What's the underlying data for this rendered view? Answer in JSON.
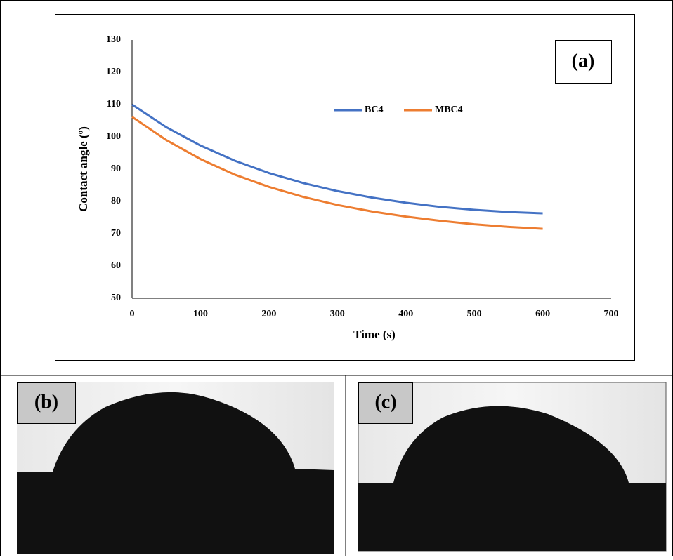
{
  "chart_data": {
    "type": "line",
    "x": [
      0,
      50,
      100,
      150,
      200,
      250,
      300,
      350,
      400,
      450,
      500,
      550,
      600
    ],
    "series": [
      {
        "name": "BC4",
        "color": "#4472c4",
        "values": [
          110,
          103,
          97.3,
          92.6,
          88.8,
          85.7,
          83.2,
          81.2,
          79.6,
          78.3,
          77.4,
          76.7,
          76.3
        ]
      },
      {
        "name": "MBC4",
        "color": "#ed7d31",
        "values": [
          106.2,
          99.0,
          93.1,
          88.3,
          84.5,
          81.4,
          78.9,
          76.9,
          75.3,
          74.0,
          72.9,
          72.1,
          71.5
        ]
      }
    ],
    "xlabel": "Time (s)",
    "ylabel": "Contact angle (º)",
    "xlim": [
      0,
      700
    ],
    "xticks": [
      0,
      100,
      200,
      300,
      400,
      500,
      600,
      700
    ],
    "ylim": [
      50,
      130
    ],
    "yticks": [
      50,
      60,
      70,
      80,
      90,
      100,
      110,
      120,
      130
    ],
    "annotation": "(a)"
  },
  "panels": [
    {
      "label": "(b)"
    },
    {
      "label": "(c)"
    }
  ]
}
